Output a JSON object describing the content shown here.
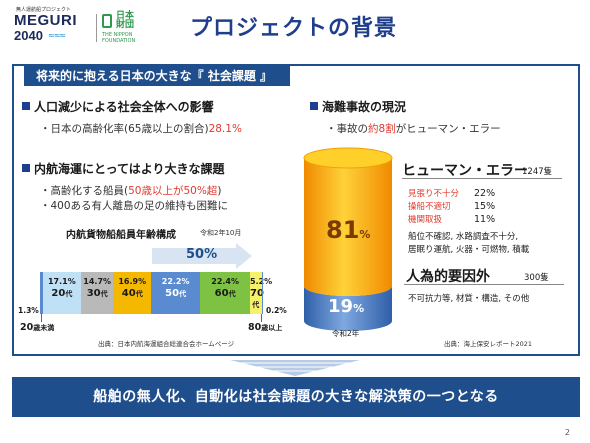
{
  "logo": {
    "small_text": "無人運航船プロジェクト",
    "line1": "MEGURI",
    "line2": "2040",
    "foundation_jp": "日本財団",
    "foundation_en": "THE NIPPON FOUNDATION"
  },
  "page_title": "プロジェクトの背景",
  "panel_header": "将来的に抱える日本の大きな『 社会課題 』",
  "left": {
    "section1_title": "人口減少による社会全体への影響",
    "section1_bullet_prefix": "・日本の高齢化率(65歳以上の割合)",
    "section1_bullet_value": "28.1%",
    "section2_title": "内航海運にとってはより大きな課題",
    "section2_bullet1_prefix": "・高齢化する船員(",
    "section2_bullet1_value": "50歳以上が50%超",
    "section2_bullet1_suffix": ")",
    "section2_bullet2": "・400ある有人離島の足の維持も困難に"
  },
  "age_chart": {
    "title": "内航貨物船船員年齢構成",
    "date": "令和2年10月",
    "arrow_label": "50%",
    "source": "出典：日本内航海運組合総連合会ホームページ"
  },
  "chart_data": [
    {
      "type": "bar",
      "title": "内航貨物船船員年齢構成",
      "orientation": "stacked-horizontal",
      "categories": [
        "20歳未満",
        "20代",
        "30代",
        "40代",
        "50代",
        "60代",
        "70代",
        "80歳以上"
      ],
      "values": [
        1.3,
        17.1,
        14.7,
        16.9,
        22.2,
        22.4,
        5.2,
        0.2
      ],
      "unit": "%",
      "value_labels": [
        "1.3%",
        "17.1%",
        "14.7%",
        "16.9%",
        "22.2%",
        "22.4%",
        "5.2%",
        "0.2%"
      ],
      "age_labels": {
        "u20": "20",
        "u20_suffix": "歳未満",
        "a20": "20",
        "a30": "30",
        "a40": "40",
        "a50": "50",
        "a60": "60",
        "a70": "70",
        "a80": "80",
        "a80_suffix": "歳以上",
        "dai": "代"
      },
      "colors": [
        "#5a8bd0",
        "#bfe0f5",
        "#b9b9b9",
        "#f5b800",
        "#5a8bd0",
        "#7dc242",
        "#f7f06a",
        "#5a8bd0"
      ],
      "annotation": "50%"
    },
    {
      "type": "bar",
      "orientation": "stacked-cylinder",
      "categories": [
        "ヒューマン・エラー",
        "人為的要因外"
      ],
      "values": [
        81,
        19
      ],
      "unit": "%",
      "colors": [
        "#f5a800",
        "#4a7fc4"
      ],
      "year": "令和2年"
    }
  ],
  "right": {
    "section_title": "海難事故の現況",
    "bullet_prefix": "・事故の",
    "bullet_value": "約8割",
    "bullet_suffix": "がヒューマン・エラー",
    "pct_big": "81",
    "pct_small": "19",
    "pct_unit": "%",
    "human_error_title": "ヒューマン・エラー",
    "human_error_count": "1247隻",
    "items": [
      {
        "name": "見張り不十分",
        "value": "22%"
      },
      {
        "name": "操船不適切",
        "value": "15%"
      },
      {
        "name": "機関取扱",
        "value": "11%"
      }
    ],
    "human_error_note1": "船位不確認, 水路調査不十分,",
    "human_error_note2": "居眠り運航, 火器・可燃物, 積載",
    "other_title": "人為的要因外",
    "other_count": "300隻",
    "other_note": "不可抗力等, 材質・構造, その他",
    "year": "令和2年",
    "source": "出典：海上保安レポート2021"
  },
  "conclusion": "船舶の無人化、自動化は社会課題の大きな解決策の一つとなる",
  "page_number": "2"
}
